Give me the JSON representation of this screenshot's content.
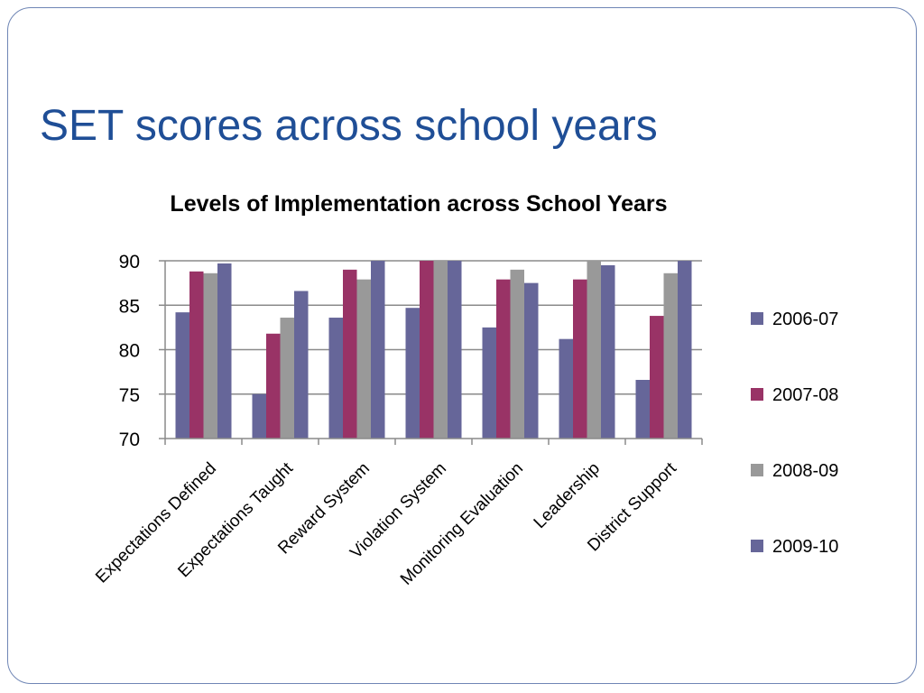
{
  "slide": {
    "title": "SET scores across school years"
  },
  "colors": {
    "frame": "#6f86b5",
    "title": "#1f4e96"
  },
  "chart_data": {
    "type": "bar",
    "title": "Levels of Implementation across School Years",
    "xlabel": "",
    "ylabel": "",
    "ylim": [
      70,
      90
    ],
    "yticks": [
      90,
      85,
      80,
      75,
      70
    ],
    "grid": true,
    "legend_position": "right",
    "categories": [
      "Expectations Defined",
      "Expectations Taught",
      "Reward System",
      "Violation System",
      "Monitoring Evaluation",
      "Leadership",
      "District Support"
    ],
    "series": [
      {
        "name": "2006-07",
        "color": "#666699",
        "values": [
          84.2,
          75.0,
          83.6,
          84.7,
          82.5,
          81.2,
          76.6
        ]
      },
      {
        "name": "2007-08",
        "color": "#993366",
        "values": [
          88.8,
          81.8,
          89.0,
          90.0,
          87.9,
          87.9,
          83.8
        ]
      },
      {
        "name": "2008-09",
        "color": "#999999",
        "values": [
          88.6,
          83.6,
          87.9,
          90.0,
          89.0,
          90.0,
          88.6
        ]
      },
      {
        "name": "2009-10",
        "color": "#666699",
        "values": [
          89.7,
          86.6,
          90.0,
          90.0,
          87.5,
          89.5,
          90.0
        ]
      }
    ]
  }
}
